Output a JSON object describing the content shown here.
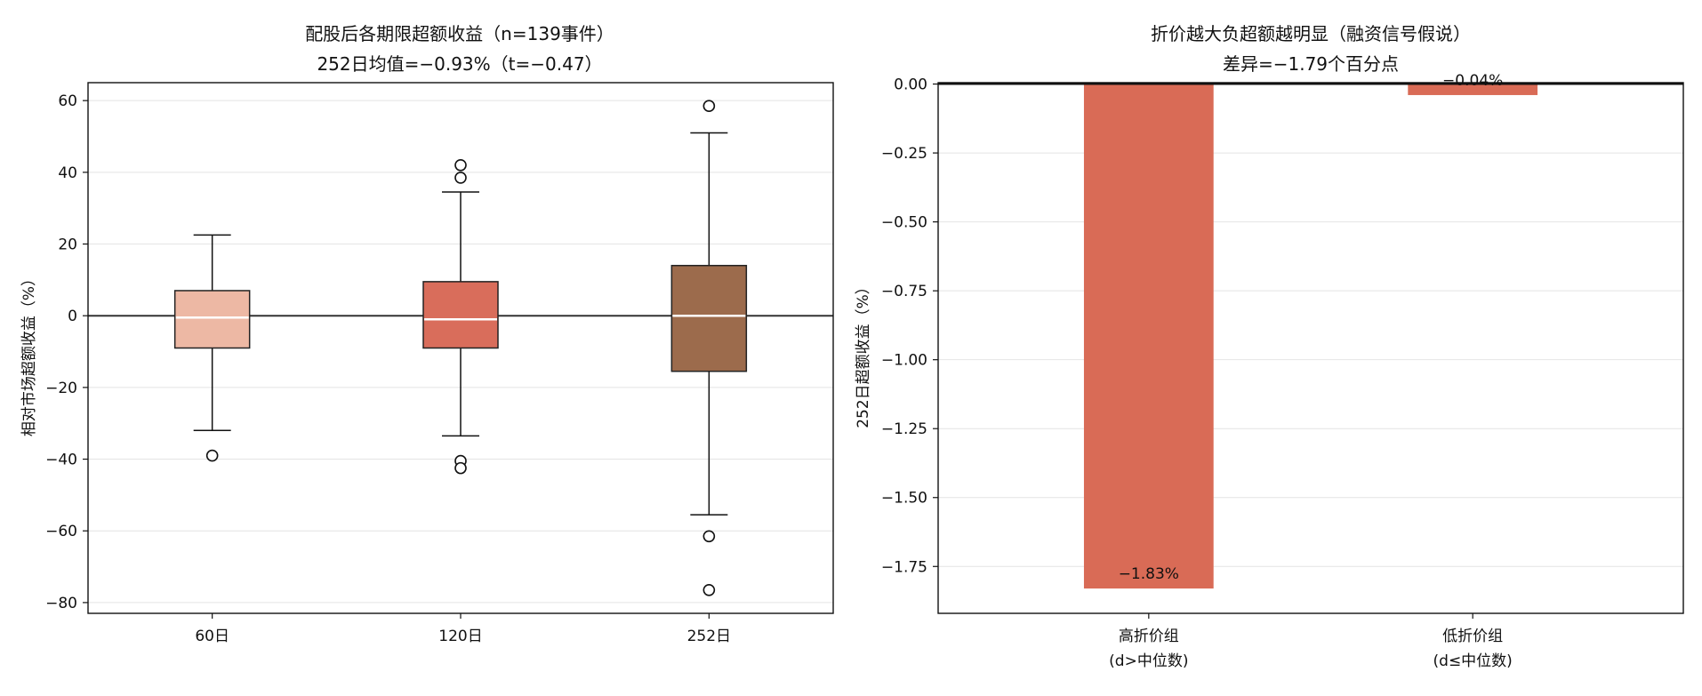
{
  "chart_data": [
    {
      "type": "box",
      "title": "配股后各期限超额收益（n=139事件）",
      "subtitle": "252日均值=−0.93%（t=−0.47）",
      "xlabel": "",
      "ylabel": "相对市场超额收益（%）",
      "ylim": [
        -83,
        65
      ],
      "yticks": [
        "60",
        "40",
        "20",
        "0",
        "−20",
        "−40",
        "−60",
        "−80"
      ],
      "ytick_values": [
        60,
        40,
        20,
        0,
        -20,
        -40,
        -60,
        -80
      ],
      "grid": "horizontal",
      "categories": [
        "60日",
        "120日",
        "252日"
      ],
      "colors": [
        "#edb8a4",
        "#d96d5b",
        "#9c6b4c"
      ],
      "median_color": "#ffffff",
      "boxes": [
        {
          "whisker_low": -32,
          "q1": -9,
          "median": -0.5,
          "q3": 7,
          "whisker_high": 22.5,
          "outliers": [
            -39
          ]
        },
        {
          "whisker_low": -33.5,
          "q1": -9,
          "median": -1,
          "q3": 9.5,
          "whisker_high": 34.5,
          "outliers": [
            42,
            38.5,
            -40.5,
            -42.5
          ]
        },
        {
          "whisker_low": -55.5,
          "q1": -15.5,
          "median": 0,
          "q3": 14,
          "whisker_high": 51,
          "outliers": [
            58.5,
            -61.5,
            -76.5
          ]
        }
      ],
      "reference_line_y": 0
    },
    {
      "type": "bar",
      "title": "折价越大负超额越明显（融资信号假说）",
      "subtitle": "差异=−1.79个百分点",
      "xlabel": "",
      "ylabel": "252日超额收益（%）",
      "ylim": [
        -1.92,
        0.005
      ],
      "yticks": [
        "0.00",
        "−0.25",
        "−0.50",
        "−0.75",
        "−1.00",
        "−1.25",
        "−1.50",
        "−1.75"
      ],
      "ytick_values": [
        0,
        -0.25,
        -0.5,
        -0.75,
        -1.0,
        -1.25,
        -1.5,
        -1.75
      ],
      "grid": "horizontal",
      "categories": [
        [
          "高折价组",
          "(d>中位数)"
        ],
        [
          "低折价组",
          "(d≤中位数)"
        ]
      ],
      "values": [
        -1.83,
        -0.04
      ],
      "value_labels": [
        "−1.83%",
        "−0.04%"
      ],
      "bar_color": "#d96b56",
      "reference_line_y": 0
    }
  ]
}
